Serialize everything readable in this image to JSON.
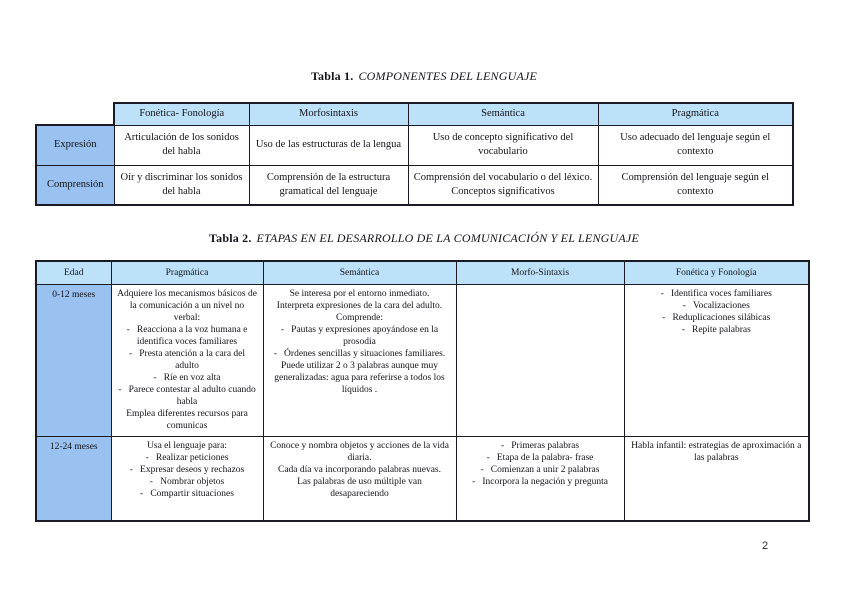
{
  "page": {
    "number": "2"
  },
  "colors": {
    "header_fill": "#BDE1F8",
    "label_fill": "#99C2F0",
    "border": "#1b1b26"
  },
  "table1": {
    "title_prefix": "Tabla 1.",
    "title": "COMPONENTES DEL LENGUAJE",
    "columns": [
      "Fonética- Fonología",
      "Morfosintaxis",
      "Semántica",
      "Pragmática"
    ],
    "rows": [
      {
        "label": "Expresión",
        "cells": [
          "Articulación de los sonidos del habla",
          "Uso de las estructuras de la lengua",
          "Uso de concepto significativo del vocabulario",
          "Uso adecuado del lenguaje según el contexto"
        ]
      },
      {
        "label": "Comprensión",
        "cells": [
          "Oír y discriminar los sonidos del habla",
          "Comprensión de la estructura gramatical del lenguaje",
          "Comprensión del vocabulario o del léxico. Conceptos significativos",
          "Comprensión del lenguaje según el contexto"
        ]
      }
    ]
  },
  "table2": {
    "title_prefix": "Tabla 2.",
    "title": "ETAPAS EN EL DESARROLLO DE LA COMUNICACIÓN Y EL LENGUAJE",
    "columns": [
      "Edad",
      "Pragmática",
      "Semántica",
      "Morfo-Sintaxis",
      "Fonética y Fonología"
    ],
    "rows": [
      {
        "age": "0-12 meses",
        "cells": [
          [
            {
              "type": "p",
              "text": "Adquiere los mecanismos básicos de la comunicación a un nivel no verbal:"
            },
            {
              "type": "li",
              "text": "Reacciona a la voz humana e identifica voces familiares"
            },
            {
              "type": "li",
              "text": "Presta atención a la cara del adulto"
            },
            {
              "type": "li",
              "text": "Ríe en voz alta"
            },
            {
              "type": "li",
              "text": "Parece contestar al adulto cuando habla"
            },
            {
              "type": "p",
              "text": "Emplea diferentes recursos para comunicas"
            }
          ],
          [
            {
              "type": "p",
              "text": "Se interesa por el entorno inmediato."
            },
            {
              "type": "p",
              "text": "Interpreta expresiones de la cara del adulto."
            },
            {
              "type": "p",
              "text": "Comprende:"
            },
            {
              "type": "li",
              "text": "Pautas y expresiones apoyándose en la prosodia"
            },
            {
              "type": "li",
              "text": "Órdenes sencillas y situaciones familiares."
            },
            {
              "type": "p",
              "text": "Puede utilizar 2 o 3 palabras aunque muy generalizadas: agua para referirse a todos los líquidos ."
            }
          ],
          [],
          [
            {
              "type": "li",
              "text": "Identifica voces familiares"
            },
            {
              "type": "li",
              "text": "Vocalizaciones"
            },
            {
              "type": "li",
              "text": "Reduplicaciones silábicas"
            },
            {
              "type": "li",
              "text": "Repite palabras"
            }
          ]
        ]
      },
      {
        "age": "12-24 meses",
        "cells": [
          [
            {
              "type": "p",
              "text": "Usa el lenguaje para:"
            },
            {
              "type": "li",
              "text": "Realizar peticiones"
            },
            {
              "type": "li",
              "text": "Expresar deseos y rechazos"
            },
            {
              "type": "li",
              "text": "Nombrar objetos"
            },
            {
              "type": "li",
              "text": "Compartir situaciones"
            }
          ],
          [
            {
              "type": "p",
              "text": "Conoce y nombra objetos y acciones de la vida diaria."
            },
            {
              "type": "p",
              "text": "Cada día va incorporando palabras nuevas."
            },
            {
              "type": "p",
              "text": "Las palabras de uso múltiple van desapareciendo"
            }
          ],
          [
            {
              "type": "li",
              "text": "Primeras palabras"
            },
            {
              "type": "li",
              "text": "Etapa de la palabra- frase"
            },
            {
              "type": "li",
              "text": "Comienzan a unir 2 palabras"
            },
            {
              "type": "li",
              "text": "Incorpora la negación y pregunta"
            }
          ],
          [
            {
              "type": "p",
              "text": "Habla infantil: estrategias de aproximación a las palabras"
            }
          ]
        ]
      }
    ]
  }
}
